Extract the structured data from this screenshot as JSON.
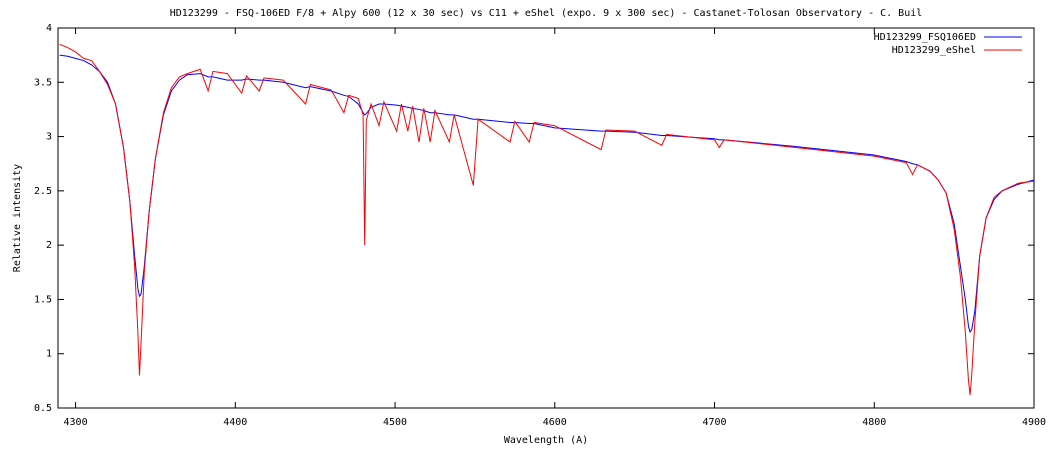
{
  "chart_data": {
    "type": "line",
    "title": "HD123299 - FSQ-106ED F/8 + Alpy 600 (12 x 30 sec)  vs C11 + eShel (expo. 9 x 300 sec) - Castanet-Tolosan Observatory - C. Buil",
    "x_label": "Wavelength (A)",
    "y_label": "Relative intensity",
    "legend": "top-right",
    "xlim": [
      4289,
      4900
    ],
    "xticks": [
      4300,
      4400,
      4500,
      4600,
      4700,
      4800,
      4900
    ],
    "ylim": [
      0.5,
      4
    ],
    "yticks": [
      0.5,
      1,
      1.5,
      2,
      2.5,
      3,
      3.5,
      4
    ],
    "x": [
      4290,
      4295,
      4300,
      4305,
      4310,
      4315,
      4320,
      4325,
      4330,
      4334,
      4337,
      4339,
      4340,
      4341,
      4343,
      4346,
      4350,
      4355,
      4360,
      4365,
      4370,
      4378,
      4383,
      4386,
      4395,
      4404,
      4407,
      4415,
      4418,
      4430,
      4444,
      4447,
      4460,
      4468,
      4471,
      4477,
      4480,
      4481,
      4482,
      4485,
      4490,
      4493,
      4501,
      4504,
      4508,
      4511,
      4515,
      4518,
      4522,
      4525,
      4534,
      4537,
      4549,
      4552,
      4572,
      4575,
      4584,
      4587,
      4600,
      4629,
      4632,
      4650,
      4667,
      4670,
      4700,
      4703,
      4706,
      4750,
      4800,
      4820,
      4824,
      4827,
      4835,
      4840,
      4845,
      4850,
      4854,
      4857,
      4859,
      4860,
      4861,
      4863,
      4866,
      4870,
      4875,
      4880,
      4890,
      4900
    ],
    "series": [
      {
        "name": "HD123299_FSQ106ED",
        "color": "#0000ff",
        "values": [
          3.75,
          3.74,
          3.72,
          3.7,
          3.66,
          3.6,
          3.5,
          3.3,
          2.9,
          2.4,
          1.9,
          1.6,
          1.53,
          1.55,
          1.8,
          2.3,
          2.8,
          3.2,
          3.42,
          3.52,
          3.57,
          3.58,
          3.55,
          3.55,
          3.52,
          3.52,
          3.53,
          3.52,
          3.52,
          3.5,
          3.45,
          3.46,
          3.42,
          3.38,
          3.37,
          3.3,
          3.22,
          3.2,
          3.21,
          3.27,
          3.3,
          3.3,
          3.29,
          3.28,
          3.27,
          3.26,
          3.25,
          3.24,
          3.22,
          3.22,
          3.2,
          3.2,
          3.16,
          3.16,
          3.13,
          3.13,
          3.12,
          3.12,
          3.08,
          3.05,
          3.05,
          3.04,
          3.01,
          3.01,
          2.98,
          2.97,
          2.97,
          2.91,
          2.83,
          2.77,
          2.75,
          2.74,
          2.68,
          2.6,
          2.48,
          2.2,
          1.8,
          1.5,
          1.25,
          1.2,
          1.22,
          1.4,
          1.9,
          2.25,
          2.42,
          2.5,
          2.56,
          2.6
        ]
      },
      {
        "name": "HD123299_eShel",
        "color": "#ff0000",
        "values": [
          3.85,
          3.82,
          3.78,
          3.72,
          3.7,
          3.6,
          3.48,
          3.3,
          2.9,
          2.4,
          1.8,
          1.2,
          0.8,
          1.1,
          1.75,
          2.3,
          2.8,
          3.22,
          3.45,
          3.55,
          3.58,
          3.62,
          3.42,
          3.6,
          3.58,
          3.4,
          3.56,
          3.42,
          3.54,
          3.52,
          3.3,
          3.48,
          3.43,
          3.22,
          3.38,
          3.35,
          3.2,
          2.0,
          3.15,
          3.3,
          3.1,
          3.32,
          3.05,
          3.3,
          3.05,
          3.28,
          2.95,
          3.26,
          2.95,
          3.24,
          2.95,
          3.2,
          2.55,
          3.16,
          2.95,
          3.14,
          2.95,
          3.13,
          3.1,
          2.88,
          3.06,
          3.05,
          2.92,
          3.02,
          2.97,
          2.9,
          2.97,
          2.9,
          2.82,
          2.76,
          2.65,
          2.74,
          2.68,
          2.6,
          2.48,
          2.15,
          1.7,
          1.2,
          0.75,
          0.62,
          0.8,
          1.3,
          1.9,
          2.25,
          2.44,
          2.5,
          2.57,
          2.59
        ]
      }
    ]
  }
}
